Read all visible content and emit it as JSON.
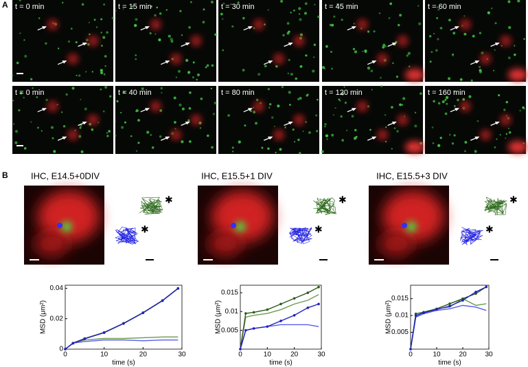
{
  "panel_a": {
    "label": "A",
    "rows": [
      [
        "t = 0 min",
        "t = 15 min",
        "t = 30 min",
        "t = 45 min",
        "t = 60 min"
      ],
      [
        "t = 0 min",
        "t = 40 min",
        "t = 80 min",
        "t = 120 min",
        "t = 160 min"
      ]
    ]
  },
  "panel_b": {
    "label": "B",
    "titles": [
      "IHC, E14.5+0DIV",
      "IHC, E15.5+1 DIV",
      "IHC, E15.5+3 DIV"
    ]
  },
  "chart_data": [
    {
      "type": "line",
      "xlabel": "time (s)",
      "ylabel": "MSD (μm²)",
      "x": [
        0,
        2,
        5,
        10,
        15,
        20,
        25,
        29
      ],
      "xlim": [
        0,
        30
      ],
      "xticks": [
        0,
        10,
        20,
        30
      ],
      "ylim": [
        0,
        0.042
      ],
      "yticks": [
        0,
        0.02,
        0.04
      ],
      "series": [
        {
          "color": "#6a9a50",
          "marker": false,
          "values": [
            0,
            0.004,
            0.006,
            0.007,
            0.007,
            0.0075,
            0.008,
            0.008
          ]
        },
        {
          "color": "#5a5af0",
          "marker": false,
          "values": [
            0,
            0.004,
            0.005,
            0.006,
            0.006,
            0.0055,
            0.006,
            0.006
          ]
        },
        {
          "color": "#2d5a1b",
          "marker": true,
          "values": [
            0,
            0.004,
            0.007,
            0.011,
            0.017,
            0.024,
            0.032,
            0.04
          ]
        },
        {
          "color": "#2020c0",
          "marker": true,
          "values": [
            0,
            0.0038,
            0.0068,
            0.0108,
            0.0168,
            0.0238,
            0.0318,
            0.0398
          ]
        }
      ]
    },
    {
      "type": "line",
      "xlabel": "time (s)",
      "ylabel": "MSD (μm²)",
      "x": [
        0,
        2,
        5,
        10,
        15,
        20,
        25,
        29
      ],
      "xlim": [
        0,
        30
      ],
      "xticks": [
        0,
        10,
        20,
        30
      ],
      "ylim": [
        0,
        0.017
      ],
      "yticks": [
        0.005,
        0.01,
        0.015
      ],
      "series": [
        {
          "color": "#6a9a50",
          "marker": false,
          "values": [
            0,
            0.0085,
            0.009,
            0.0095,
            0.0105,
            0.012,
            0.013,
            0.0145
          ]
        },
        {
          "color": "#5a5af0",
          "marker": false,
          "values": [
            0,
            0.005,
            0.0055,
            0.006,
            0.0065,
            0.0065,
            0.0065,
            0.006
          ]
        },
        {
          "color": "#2d5a1b",
          "marker": true,
          "values": [
            0,
            0.0095,
            0.0098,
            0.0105,
            0.012,
            0.0135,
            0.015,
            0.0165
          ]
        },
        {
          "color": "#2020c0",
          "marker": true,
          "values": [
            0,
            0.005,
            0.0055,
            0.006,
            0.0075,
            0.009,
            0.011,
            0.012
          ]
        }
      ]
    },
    {
      "type": "line",
      "xlabel": "time (s)",
      "ylabel": "MSD (μm²)",
      "x": [
        0,
        2,
        5,
        10,
        15,
        20,
        25,
        29
      ],
      "xlim": [
        0,
        30
      ],
      "xticks": [
        0,
        10,
        20,
        30
      ],
      "ylim": [
        0,
        0.019
      ],
      "yticks": [
        0.005,
        0.01,
        0.015
      ],
      "series": [
        {
          "color": "#6a9a50",
          "marker": false,
          "values": [
            0,
            0.0095,
            0.011,
            0.012,
            0.0125,
            0.015,
            0.013,
            0.0135
          ]
        },
        {
          "color": "#5a5af0",
          "marker": false,
          "values": [
            0,
            0.0095,
            0.0105,
            0.0115,
            0.012,
            0.013,
            0.0125,
            0.0115
          ]
        },
        {
          "color": "#2d5a1b",
          "marker": true,
          "values": [
            0,
            0.0105,
            0.011,
            0.012,
            0.0135,
            0.015,
            0.0165,
            0.0185
          ]
        },
        {
          "color": "#2020c0",
          "marker": true,
          "values": [
            0,
            0.01,
            0.0108,
            0.0118,
            0.0128,
            0.0145,
            0.017,
            0.0185
          ]
        }
      ]
    }
  ]
}
